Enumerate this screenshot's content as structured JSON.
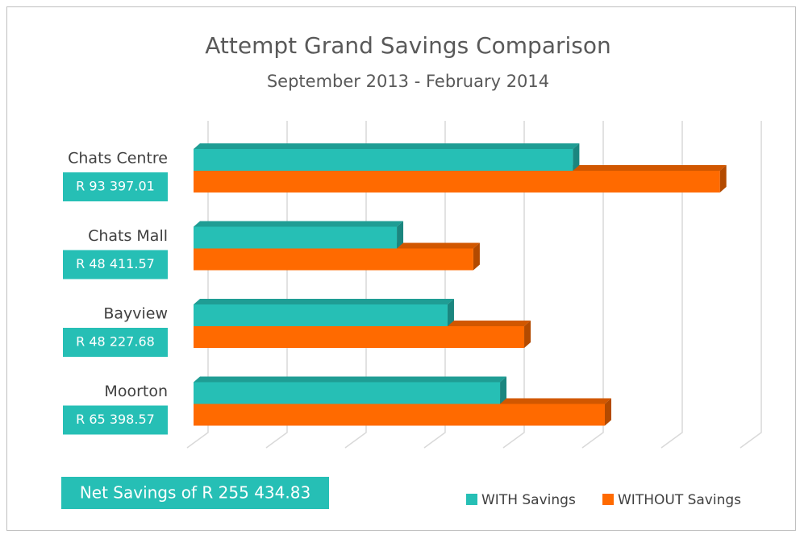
{
  "chart_data": {
    "type": "bar3d_horizontal",
    "title": "Attempt Grand Savings Comparison",
    "subtitle": "September 2013 - February 2014",
    "categories": [
      "Chats Centre",
      "Chats Mall",
      "Bayview",
      "Moorton"
    ],
    "savings_labels": [
      "R 93 397.01",
      "R 48 411.57",
      "R 48 227.68",
      "R 65 398.57"
    ],
    "series": [
      {
        "name": "WITH Savings",
        "color": "#26bfb5",
        "values": [
          240000,
          128600,
          160700,
          193900
        ]
      },
      {
        "name": "WITHOUT Savings",
        "color": "#ff6a00",
        "values": [
          333000,
          177000,
          209200,
          260200
        ]
      }
    ],
    "xlim": [
      0,
      350000
    ],
    "xticks": [
      0,
      50000,
      100000,
      150000,
      200000,
      250000,
      300000,
      350000
    ],
    "grid": true,
    "legend": "bottom-right",
    "annotation": "Net Savings of R 255 434.83"
  }
}
